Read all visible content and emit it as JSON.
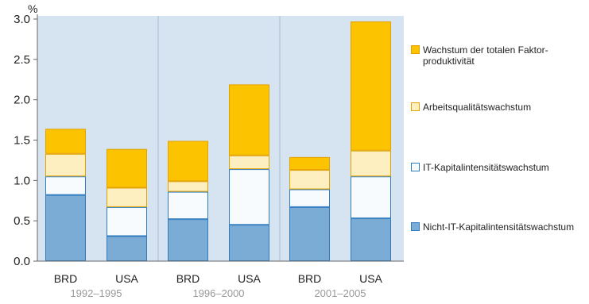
{
  "chart_data": {
    "type": "bar",
    "stacked": true,
    "unit_label": "%",
    "ylim": [
      0,
      3.0
    ],
    "yticks": [
      "0.0",
      "0.5",
      "1.0",
      "1.5",
      "2.0",
      "2.5",
      "3.0"
    ],
    "categories": [
      "BRD",
      "USA",
      "BRD",
      "USA",
      "BRD",
      "USA"
    ],
    "groups": [
      {
        "label": "1992–1995",
        "members": [
          0,
          1
        ]
      },
      {
        "label": "1996–2000",
        "members": [
          2,
          3
        ]
      },
      {
        "label": "2001–2005",
        "members": [
          4,
          5
        ]
      }
    ],
    "grid": false,
    "legend_position": "right",
    "series": [
      {
        "name": "Nicht-IT-Kapitalintensitätswachstum",
        "color": "#7bacd6",
        "values": [
          0.82,
          0.31,
          0.52,
          0.45,
          0.67,
          0.53
        ]
      },
      {
        "name": "IT-Kapitalintensitätswachstum",
        "color": "#f7fbfe",
        "values": [
          0.23,
          0.36,
          0.34,
          0.69,
          0.22,
          0.52
        ]
      },
      {
        "name": "Arbeitsqualitätswachstum",
        "color": "#fdefc0",
        "values": [
          0.28,
          0.24,
          0.13,
          0.17,
          0.24,
          0.32
        ]
      },
      {
        "name": "Wachstum der totalen Faktor-produktivität",
        "legend_lines": [
          "Wachstum der totalen Faktor-",
          "produktivität"
        ],
        "color": "#fbc300",
        "values": [
          0.31,
          0.48,
          0.5,
          0.88,
          0.16,
          1.6
        ]
      }
    ],
    "legend_order": [
      3,
      2,
      1,
      0
    ],
    "colors": {
      "plot_background": "#d6e4f2",
      "axis": "#666666",
      "bar_outline_blue": "#2f7bbd",
      "bar_outline_orange": "#e4a200",
      "separator": "#a8bdd2",
      "group_label": "#999999"
    }
  }
}
